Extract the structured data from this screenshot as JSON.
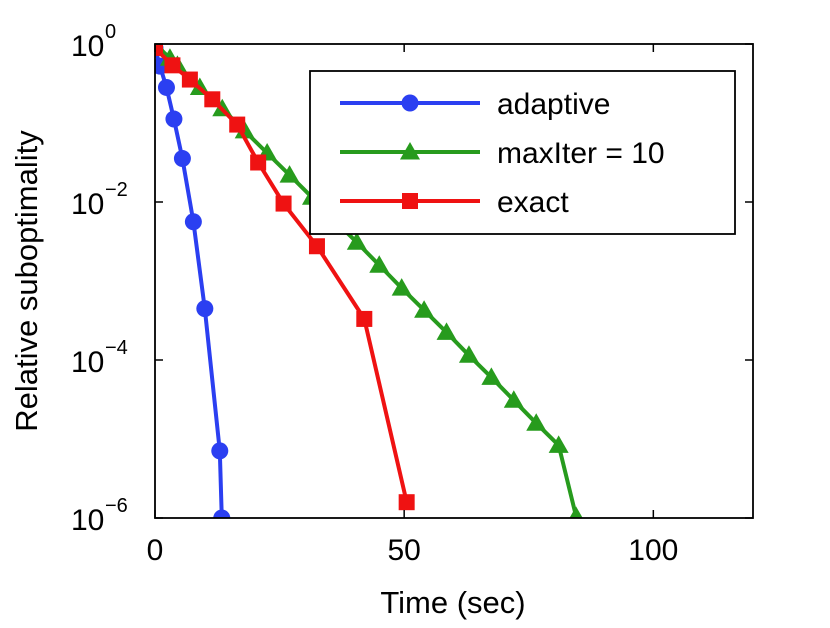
{
  "chart_data": {
    "type": "line",
    "title": "",
    "xlabel": "Time (sec)",
    "ylabel": "Relative suboptimality",
    "yscale": "log",
    "xlim": [
      0,
      120
    ],
    "ylim_exp": [
      -6,
      0
    ],
    "x_ticks": [
      0,
      50,
      100
    ],
    "x_tick_labels": [
      "0",
      "50",
      "100"
    ],
    "y_ticks": [
      0,
      -2,
      -4,
      -6
    ],
    "y_tick_labels": [
      {
        "base": "10",
        "exp": "0"
      },
      {
        "base": "10",
        "exp": "−2"
      },
      {
        "base": "10",
        "exp": "−4"
      },
      {
        "base": "10",
        "exp": "−6"
      }
    ],
    "grid": false,
    "legend_position": "top-right",
    "series": [
      {
        "name": "adaptive",
        "color": "#2b3ff1",
        "marker": "circle",
        "x": [
          0,
          1,
          2.3,
          3.8,
          5.5,
          7.7,
          10,
          13,
          13.4
        ],
        "log10_y": [
          -0.05,
          -0.28,
          -0.55,
          -0.95,
          -1.45,
          -2.25,
          -3.35,
          -5.15,
          -6.0
        ]
      },
      {
        "name": "maxIter = 10",
        "color": "#279b1d",
        "marker": "triangle",
        "x": [
          0,
          3,
          4.5,
          9,
          13.5,
          18,
          22.5,
          27,
          31.5,
          36,
          40.5,
          45,
          49.5,
          54,
          58.5,
          63,
          67.5,
          72,
          76.5,
          81,
          84.5
        ],
        "log10_y": [
          0,
          -0.18,
          -0.27,
          -0.55,
          -0.82,
          -1.1,
          -1.38,
          -1.66,
          -1.94,
          -2.23,
          -2.51,
          -2.8,
          -3.09,
          -3.37,
          -3.65,
          -3.94,
          -4.22,
          -4.51,
          -4.8,
          -5.08,
          -5.98
        ]
      },
      {
        "name": "exact",
        "color": "#ef1212",
        "marker": "square",
        "x": [
          0,
          3.5,
          7,
          11.5,
          16.5,
          20.7,
          25.8,
          32.5,
          42,
          50.5
        ],
        "log10_y": [
          -0.05,
          -0.27,
          -0.45,
          -0.7,
          -1.02,
          -1.5,
          -2.02,
          -2.56,
          -3.48,
          -5.8
        ]
      }
    ]
  }
}
